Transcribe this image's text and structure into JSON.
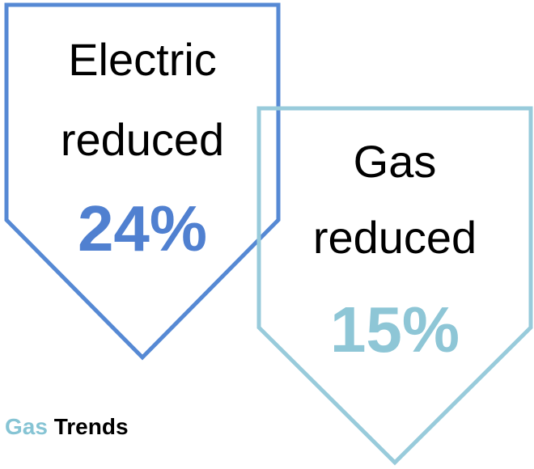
{
  "electric": {
    "line1": "Electric",
    "line2": "reduced",
    "value": "24%",
    "color": "#5689d4",
    "value_color": "#5080d0"
  },
  "gas": {
    "line1": "Gas",
    "line2": "reduced",
    "value": "15%",
    "color": "#98cbdb",
    "value_color": "#8ec6d6"
  },
  "caption": {
    "word1": "Gas",
    "word2": "Trends",
    "word1_color": "#86c4d4",
    "word2_color": "#000000"
  }
}
